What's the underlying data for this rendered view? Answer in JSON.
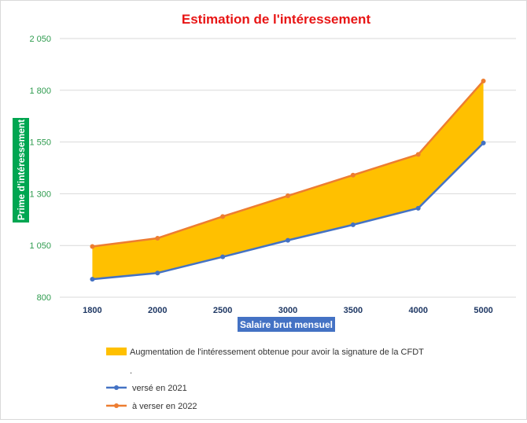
{
  "colors": {
    "title": "#e81515",
    "y_ticks": "#2e9b4e",
    "area_fill": "#ffc000",
    "line_2021": "#4472c4",
    "line_2022": "#ed7d31",
    "y_title_bg": "#00a651",
    "x_title_bg": "#4472c4"
  },
  "chart_data": {
    "type": "line",
    "title": "Estimation de l'intéressement",
    "xlabel": "Salaire brut mensuel",
    "ylabel": "Prime d'intéressement",
    "categories": [
      "1800",
      "2000",
      "2500",
      "3000",
      "3500",
      "4000",
      "5000"
    ],
    "ylim": [
      800,
      2050
    ],
    "y_ticks": [
      800,
      1050,
      1300,
      1550,
      1800,
      2050
    ],
    "y_tick_labels": [
      "800",
      "1 050",
      "1 300",
      "1 550",
      "1 800",
      "2 050"
    ],
    "grid": true,
    "legend_position": "bottom",
    "series": [
      {
        "name": "versé en 2021",
        "values": [
          887,
          917,
          995,
          1075,
          1150,
          1230,
          1545
        ]
      },
      {
        "name": "à verser en 2022",
        "values": [
          1045,
          1085,
          1190,
          1290,
          1390,
          1490,
          1845
        ]
      }
    ],
    "area": {
      "name": "Augmentation de l'intéressement obtenue pour avoir la signature de la CFDT",
      "between": [
        "versé en 2021",
        "à verser en 2022"
      ]
    },
    "legend": {
      "area_label": "Augmentation de l'intéressement obtenue pour avoir la signature de la CFDT",
      "separator": ".",
      "line1_label": "versé en 2021",
      "line2_label": "à verser en 2022"
    }
  }
}
